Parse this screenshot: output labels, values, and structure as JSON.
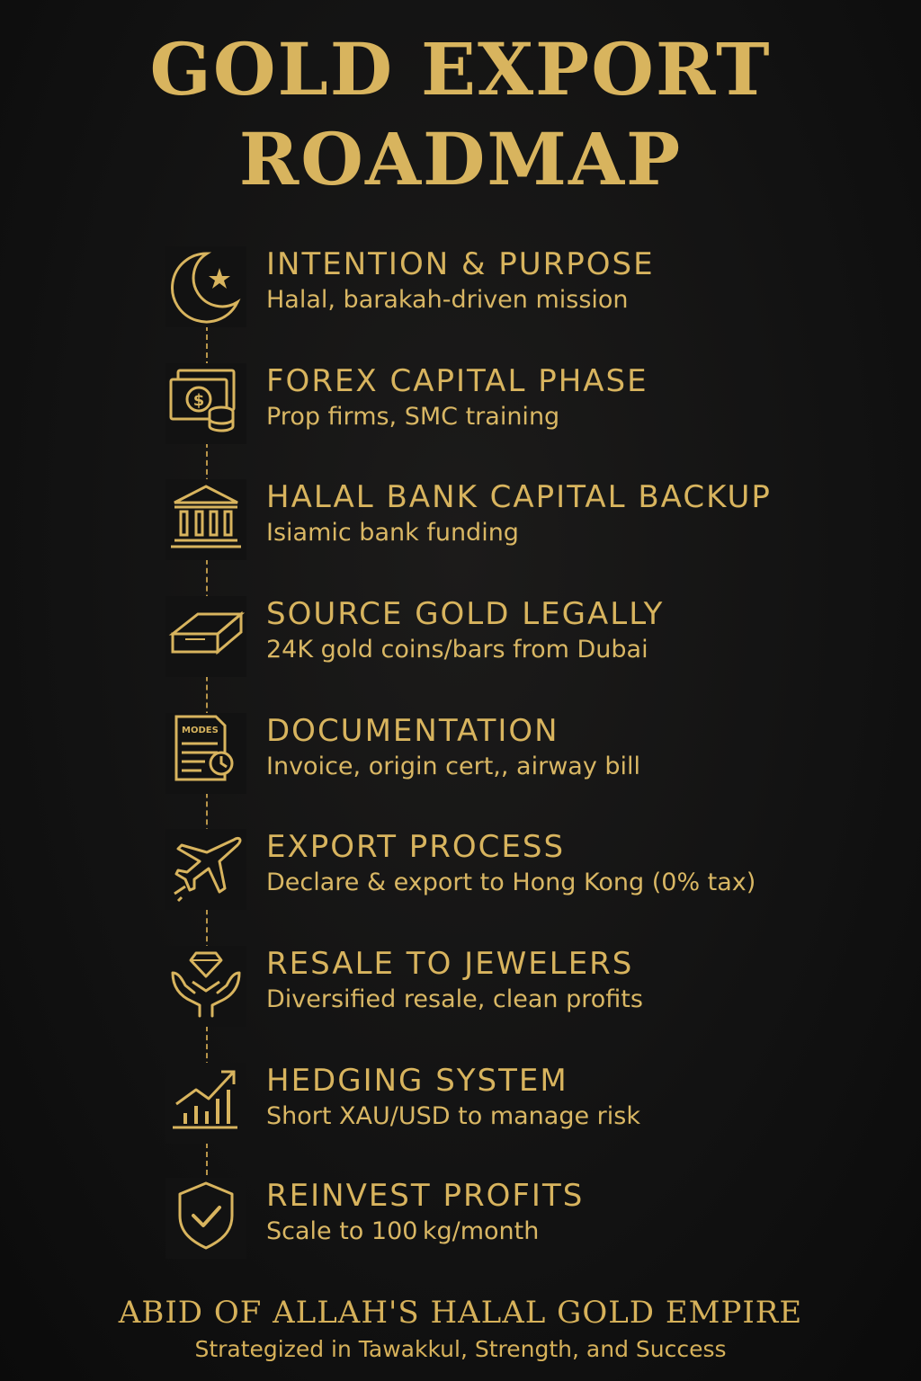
{
  "header": {
    "title_line_1": "GOLD EXPORT",
    "title_line_2": "ROADMAP"
  },
  "steps": [
    {
      "title": "INTENTION & PURPOSE",
      "description": "Halal, barakah-driven mission",
      "icon": "crescent-star-icon"
    },
    {
      "title": "FOREX CAPITAL PHASE",
      "description": "Prop firms, SMC training",
      "icon": "cash-coins-icon"
    },
    {
      "title": "HALAL BANK CAPITAL BACKUP",
      "description": "Isiamic bank funding",
      "icon": "bank-icon"
    },
    {
      "title": "SOURCE GOLD LEGALLY",
      "description": "24K gold coins/bars from Dubai",
      "icon": "gold-bar-icon"
    },
    {
      "title": "DOCUMENTATION",
      "description": "Invoice, origin cert,, airway bill",
      "icon": "document-icon",
      "icon_text": "MODES"
    },
    {
      "title": "EXPORT PROCESS",
      "description": "Declare & export to Hong Kong (0% tax)",
      "icon": "airplane-icon"
    },
    {
      "title": "RESALE TO JEWELERS",
      "description": "Diversified resale, clean profits",
      "icon": "hands-diamond-icon"
    },
    {
      "title": "HEDGING SYSTEM",
      "description": "Short XAU/USD to manage risk",
      "icon": "growth-chart-icon"
    },
    {
      "title": "REINVEST PROFITS",
      "description": "Scale to 100 kg/month",
      "icon": "shield-check-icon"
    }
  ],
  "footer": {
    "tagline": "ABID OF ALLAH'S HALAL GOLD EMPIRE",
    "subtitle": "Strategized in Tawakkul, Strength, and Success"
  },
  "colors": {
    "gold": "#d8b45e",
    "background": "#121212"
  }
}
